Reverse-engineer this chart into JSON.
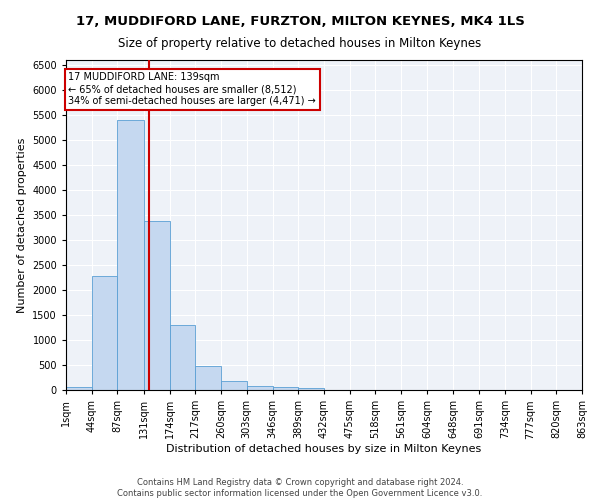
{
  "title": "17, MUDDIFORD LANE, FURZTON, MILTON KEYNES, MK4 1LS",
  "subtitle": "Size of property relative to detached houses in Milton Keynes",
  "xlabel": "Distribution of detached houses by size in Milton Keynes",
  "ylabel": "Number of detached properties",
  "footer_line1": "Contains HM Land Registry data © Crown copyright and database right 2024.",
  "footer_line2": "Contains public sector information licensed under the Open Government Licence v3.0.",
  "bin_edges": [
    1,
    44,
    87,
    131,
    174,
    217,
    260,
    303,
    346,
    389,
    432,
    475,
    518,
    561,
    604,
    648,
    691,
    734,
    777,
    820,
    863
  ],
  "bin_counts": [
    70,
    2280,
    5400,
    3380,
    1310,
    480,
    190,
    85,
    55,
    40,
    0,
    0,
    0,
    0,
    0,
    0,
    0,
    0,
    0,
    0
  ],
  "bar_color": "#c5d8f0",
  "bar_edge_color": "#5a9fd4",
  "property_size": 139,
  "vline_color": "#cc0000",
  "annotation_text": "17 MUDDIFORD LANE: 139sqm\n← 65% of detached houses are smaller (8,512)\n34% of semi-detached houses are larger (4,471) →",
  "annotation_box_color": "white",
  "annotation_box_edge_color": "#cc0000",
  "ylim": [
    0,
    6600
  ],
  "yticks": [
    0,
    500,
    1000,
    1500,
    2000,
    2500,
    3000,
    3500,
    4000,
    4500,
    5000,
    5500,
    6000,
    6500
  ],
  "bg_color": "#eef2f8",
  "grid_color": "white",
  "title_fontsize": 9.5,
  "subtitle_fontsize": 8.5,
  "xlabel_fontsize": 8,
  "ylabel_fontsize": 8,
  "tick_fontsize": 7,
  "footer_fontsize": 6,
  "annotation_fontsize": 7
}
